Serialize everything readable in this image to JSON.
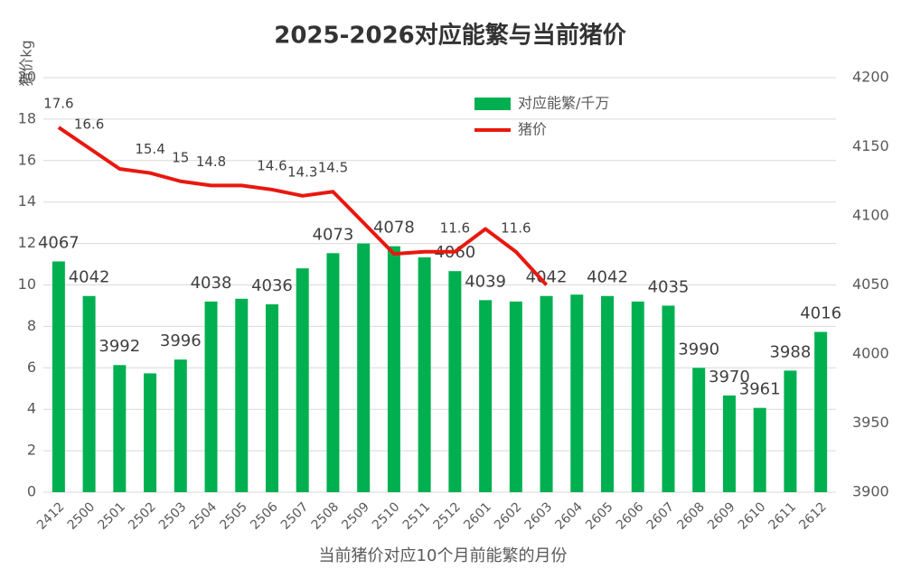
{
  "chart_data": {
    "type": "bar",
    "title": "2025-2026对应能繁与当前猪价",
    "y_label": "猪价kg",
    "x_label": "当前猪价对应10个月前能繁的月份",
    "categories": [
      "2412",
      "2500",
      "2501",
      "2502",
      "2503",
      "2504",
      "2505",
      "2506",
      "2507",
      "2508",
      "2509",
      "2510",
      "2511",
      "2512",
      "2601",
      "2602",
      "2603",
      "2604",
      "2605",
      "2606",
      "2607",
      "2608",
      "2609",
      "2610",
      "2611",
      "2612"
    ],
    "series": [
      {
        "name": "对应能繁/千万",
        "type": "bar",
        "axis": "y2",
        "color": "#00b050",
        "values": [
          4067,
          4042,
          3992,
          3986,
          3996,
          4038,
          4040,
          4036,
          4062,
          4073,
          4080,
          4078,
          4070,
          4060,
          4039,
          4038,
          4042,
          4043,
          4042,
          4038,
          4035,
          3990,
          3970,
          3961,
          3988,
          4016
        ],
        "value_labels": [
          "4067",
          "4042",
          "3992",
          null,
          "3996",
          "4038",
          null,
          "4036",
          null,
          "4073",
          null,
          "4078",
          null,
          "4060",
          "4039",
          null,
          "4042",
          null,
          "4042",
          null,
          "4035",
          "3990",
          "3970",
          "3961",
          "3988",
          "4016"
        ]
      },
      {
        "name": "猪价",
        "type": "line",
        "color": "#e8180e",
        "values": [
          17.6,
          16.6,
          15.6,
          15.4,
          15,
          14.8,
          14.8,
          14.6,
          14.3,
          14.5,
          13.0,
          11.5,
          11.6,
          11.6,
          12.7,
          11.6,
          10.0,
          null,
          null,
          null,
          null,
          null,
          null,
          null,
          null,
          null
        ],
        "value_labels": [
          "17.6",
          "16.6",
          null,
          "15.4",
          "15",
          "14.8",
          null,
          "14.6",
          "14.3",
          "14.5",
          null,
          null,
          null,
          "11.6",
          null,
          "11.6",
          null,
          null,
          null,
          null,
          null,
          null,
          null,
          null,
          null,
          null
        ]
      }
    ],
    "ylim": [
      0,
      20
    ],
    "yticks": [
      0,
      2,
      4,
      6,
      8,
      10,
      12,
      14,
      16,
      18,
      20
    ],
    "y2lim": [
      3900,
      4200
    ],
    "y2ticks": [
      3900,
      3950,
      4000,
      4050,
      4100,
      4150,
      4200
    ],
    "grid": true,
    "legend": "top"
  }
}
